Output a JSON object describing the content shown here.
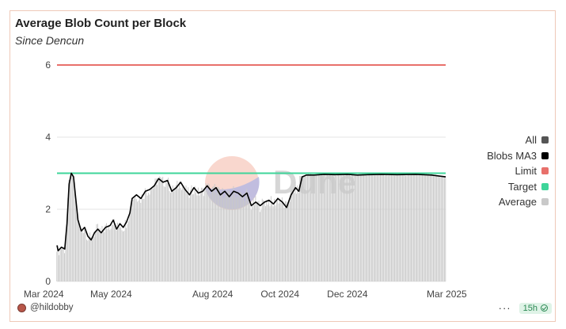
{
  "chart_data": {
    "type": "bar",
    "title": "Average Blob Count per Block",
    "subtitle": "Since Dencun",
    "xlabel": "",
    "ylabel": "",
    "ylim": [
      0,
      6.5
    ],
    "y_ticks": [
      "0",
      "2",
      "4",
      "6"
    ],
    "x_ticks": [
      "Mar 2024",
      "May 2024",
      "Aug 2024",
      "Oct 2024",
      "Dec 2024",
      "Mar 2025"
    ],
    "x_tick_dates": [
      "2024-03-01",
      "2024-05-01",
      "2024-08-01",
      "2024-10-01",
      "2024-12-01",
      "2025-03-01"
    ],
    "x_range": [
      "2024-03-13",
      "2025-02-28"
    ],
    "legend_position": "right",
    "series": [
      {
        "name": "All",
        "kind": "legend-only",
        "color": "#555555"
      },
      {
        "name": "Blobs MA3",
        "kind": "line",
        "color": "#000000",
        "points": [
          [
            "2024-03-13",
            1.0
          ],
          [
            "2024-03-14",
            0.85
          ],
          [
            "2024-03-17",
            0.95
          ],
          [
            "2024-03-20",
            0.9
          ],
          [
            "2024-03-22",
            1.6
          ],
          [
            "2024-03-24",
            2.7
          ],
          [
            "2024-03-26",
            3.0
          ],
          [
            "2024-03-28",
            2.9
          ],
          [
            "2024-03-30",
            2.3
          ],
          [
            "2024-04-01",
            1.7
          ],
          [
            "2024-04-04",
            1.4
          ],
          [
            "2024-04-07",
            1.5
          ],
          [
            "2024-04-10",
            1.25
          ],
          [
            "2024-04-13",
            1.15
          ],
          [
            "2024-04-16",
            1.35
          ],
          [
            "2024-04-19",
            1.45
          ],
          [
            "2024-04-22",
            1.35
          ],
          [
            "2024-04-26",
            1.5
          ],
          [
            "2024-04-30",
            1.55
          ],
          [
            "2024-05-03",
            1.7
          ],
          [
            "2024-05-06",
            1.45
          ],
          [
            "2024-05-09",
            1.6
          ],
          [
            "2024-05-12",
            1.5
          ],
          [
            "2024-05-15",
            1.65
          ],
          [
            "2024-05-18",
            1.9
          ],
          [
            "2024-05-20",
            2.3
          ],
          [
            "2024-05-24",
            2.4
          ],
          [
            "2024-05-28",
            2.3
          ],
          [
            "2024-06-01",
            2.5
          ],
          [
            "2024-06-05",
            2.55
          ],
          [
            "2024-06-09",
            2.65
          ],
          [
            "2024-06-13",
            2.85
          ],
          [
            "2024-06-17",
            2.75
          ],
          [
            "2024-06-21",
            2.8
          ],
          [
            "2024-06-25",
            2.5
          ],
          [
            "2024-06-29",
            2.6
          ],
          [
            "2024-07-03",
            2.75
          ],
          [
            "2024-07-07",
            2.55
          ],
          [
            "2024-07-11",
            2.4
          ],
          [
            "2024-07-15",
            2.6
          ],
          [
            "2024-07-19",
            2.45
          ],
          [
            "2024-07-23",
            2.5
          ],
          [
            "2024-07-27",
            2.65
          ],
          [
            "2024-07-31",
            2.5
          ],
          [
            "2024-08-04",
            2.6
          ],
          [
            "2024-08-08",
            2.4
          ],
          [
            "2024-08-12",
            2.5
          ],
          [
            "2024-08-16",
            2.35
          ],
          [
            "2024-08-20",
            2.5
          ],
          [
            "2024-08-24",
            2.45
          ],
          [
            "2024-08-28",
            2.35
          ],
          [
            "2024-09-01",
            2.45
          ],
          [
            "2024-09-05",
            2.1
          ],
          [
            "2024-09-09",
            2.2
          ],
          [
            "2024-09-13",
            2.1
          ],
          [
            "2024-09-17",
            2.2
          ],
          [
            "2024-09-21",
            2.25
          ],
          [
            "2024-09-25",
            2.15
          ],
          [
            "2024-09-29",
            2.3
          ],
          [
            "2024-10-03",
            2.2
          ],
          [
            "2024-10-07",
            2.05
          ],
          [
            "2024-10-11",
            2.4
          ],
          [
            "2024-10-15",
            2.6
          ],
          [
            "2024-10-18",
            2.5
          ],
          [
            "2024-10-21",
            2.9
          ],
          [
            "2024-10-25",
            2.95
          ],
          [
            "2024-11-01",
            2.95
          ],
          [
            "2024-11-10",
            2.97
          ],
          [
            "2024-11-20",
            2.96
          ],
          [
            "2024-12-01",
            2.97
          ],
          [
            "2024-12-10",
            2.95
          ],
          [
            "2024-12-20",
            2.96
          ],
          [
            "2025-01-01",
            2.97
          ],
          [
            "2025-01-15",
            2.96
          ],
          [
            "2025-02-01",
            2.97
          ],
          [
            "2025-02-15",
            2.95
          ],
          [
            "2025-02-28",
            2.9
          ]
        ]
      },
      {
        "name": "Limit",
        "kind": "hline",
        "value": 6,
        "color": "#e8706b"
      },
      {
        "name": "Target",
        "kind": "hline",
        "value": 3,
        "color": "#3ed59a"
      },
      {
        "name": "Average",
        "kind": "bar",
        "color": "#c9c9c9"
      }
    ]
  },
  "footer": {
    "username": "@hildobby",
    "refresh_badge": "15h",
    "more_icon": "ellipsis-icon",
    "status_icon": "check-circle-icon"
  },
  "watermark": {
    "text": "Dune",
    "logo_icon": "dune-logo-icon"
  }
}
